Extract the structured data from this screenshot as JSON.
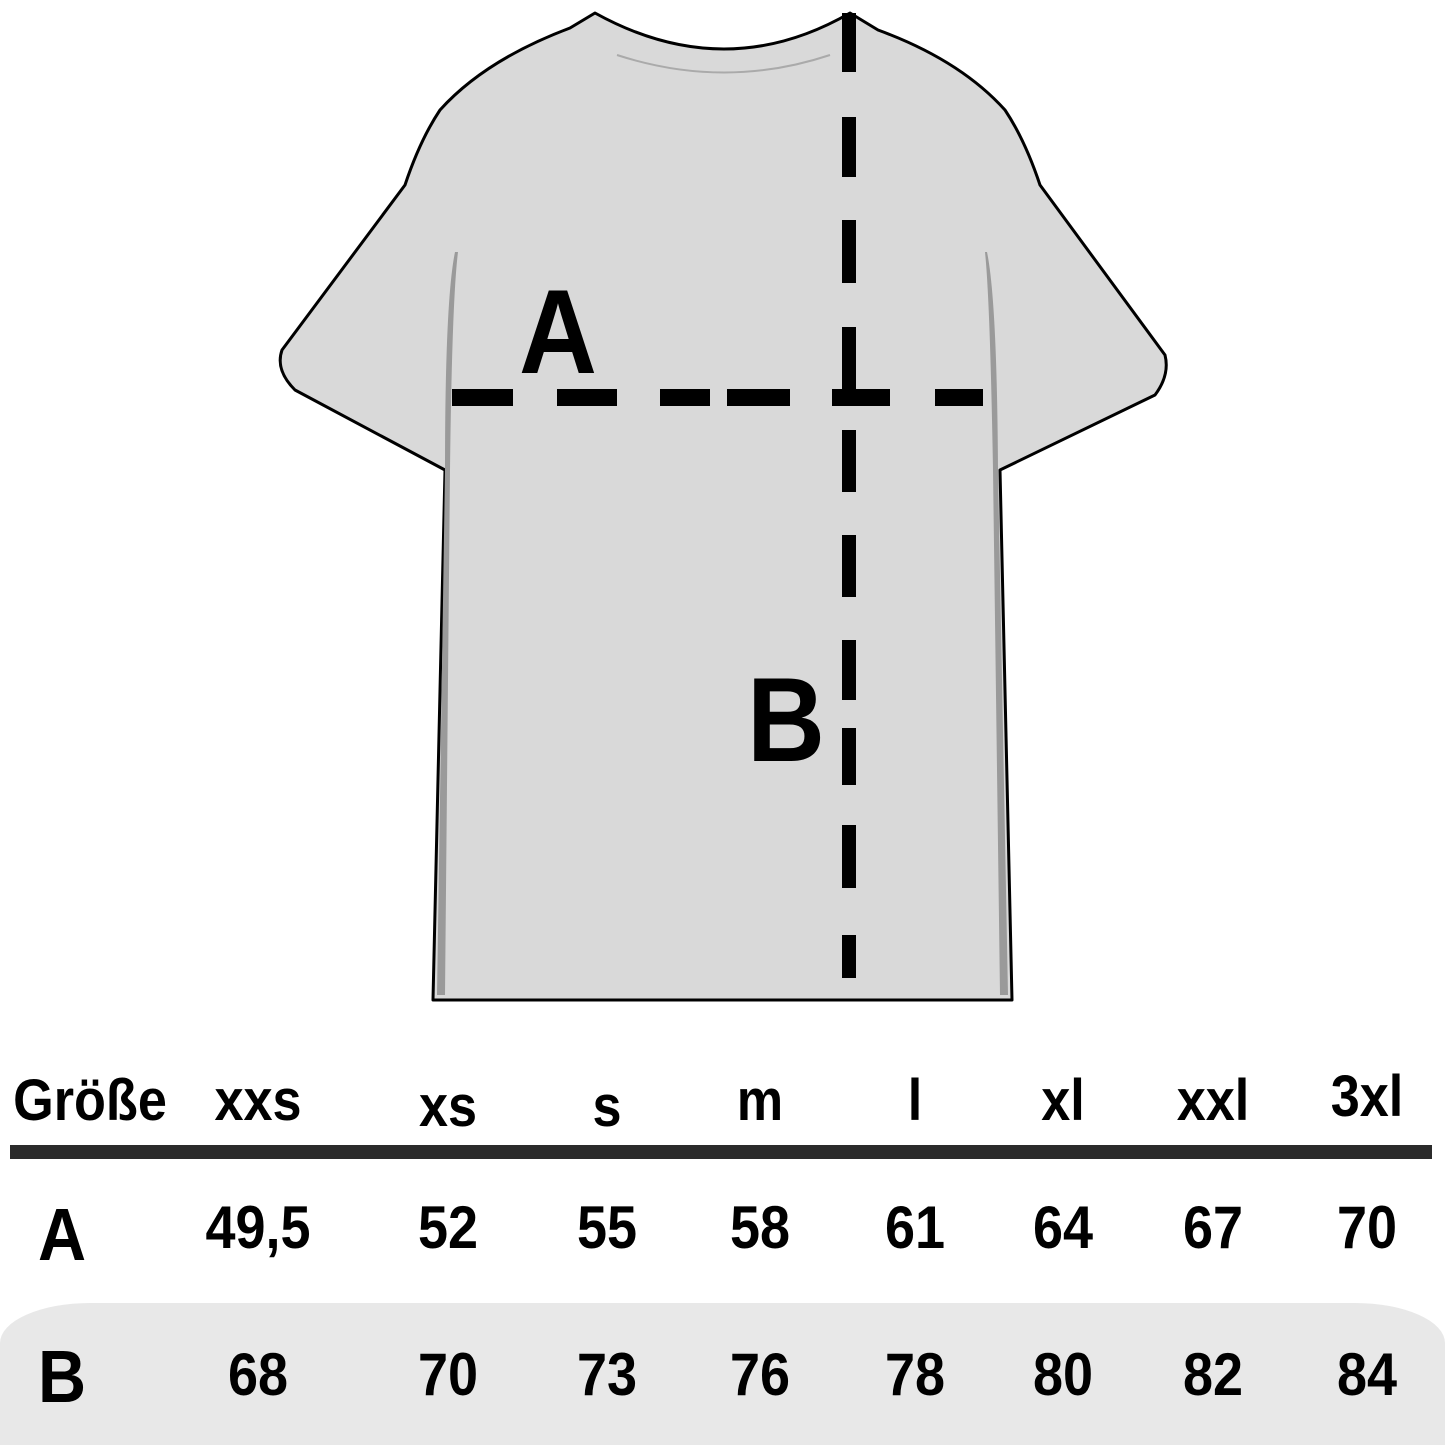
{
  "diagram": {
    "labels": {
      "width": "A",
      "length": "B"
    },
    "colors": {
      "shirt_fill": "#d9d9d9",
      "outline": "#000000",
      "shadow": "#9a9a9a",
      "band": "#e8e8e8"
    }
  },
  "table": {
    "header_label": "Größe",
    "sizes": [
      "xxs",
      "xs",
      "s",
      "m",
      "l",
      "xl",
      "xxl",
      "3xl"
    ],
    "rows": [
      {
        "label": "A",
        "values": [
          "49,5",
          "52",
          "55",
          "58",
          "61",
          "64",
          "67",
          "70"
        ]
      },
      {
        "label": "B",
        "values": [
          "68",
          "70",
          "73",
          "76",
          "78",
          "80",
          "82",
          "84"
        ]
      }
    ]
  }
}
